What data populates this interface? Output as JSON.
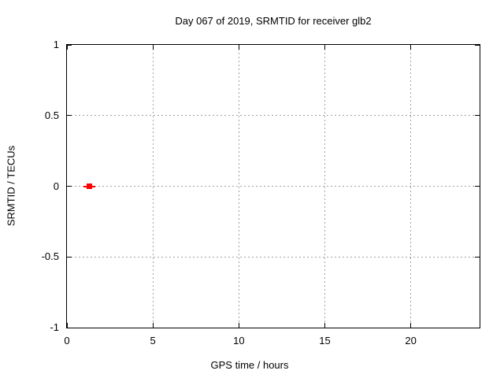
{
  "chart_data": {
    "type": "scatter",
    "title": "Day 067 of 2019, SRMTID for receiver glb2",
    "xlabel": "GPS time / hours",
    "ylabel": "SRMTID / TECUs",
    "xlim": [
      0,
      24
    ],
    "ylim": [
      -1,
      1
    ],
    "xticks": {
      "values": [
        0,
        5,
        10,
        15,
        20
      ],
      "labels": [
        "0",
        "5",
        "10",
        "15",
        "20"
      ]
    },
    "yticks": {
      "values": [
        -1,
        -0.5,
        0,
        0.5,
        1
      ],
      "labels": [
        "-1",
        "-0.5",
        "0",
        "0.5",
        "1"
      ]
    },
    "grid": true,
    "legend": false,
    "series": [
      {
        "name": "SRMTID",
        "marker": "filled-square",
        "error_bar": "x",
        "color": "#ff0000",
        "points": [
          {
            "x": 1.3,
            "y": 0,
            "xerr": 0.35
          }
        ]
      }
    ],
    "colors": {
      "background": "#ffffff",
      "border": "#000000",
      "grid": "#a0a0a0",
      "text": "#000000",
      "point": "#ff0000"
    }
  }
}
